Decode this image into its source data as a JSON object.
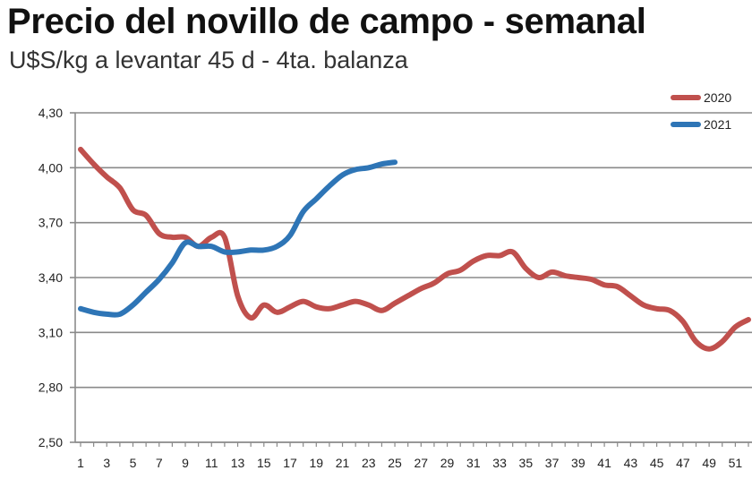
{
  "chart_data": {
    "type": "line",
    "title": "Precio del novillo de campo - semanal",
    "subtitle": "U$S/kg a levantar 45 d - 4ta. balanza",
    "xlabel": "",
    "ylabel": "",
    "ylim": [
      2.5,
      4.3
    ],
    "yticks": [
      "2,50",
      "2,80",
      "3,10",
      "3,40",
      "3,70",
      "4,00",
      "4,30"
    ],
    "xlim": [
      1,
      52
    ],
    "xticks": [
      "1",
      "3",
      "5",
      "7",
      "9",
      "11",
      "13",
      "15",
      "17",
      "19",
      "21",
      "23",
      "25",
      "27",
      "29",
      "31",
      "33",
      "35",
      "37",
      "39",
      "41",
      "43",
      "45",
      "47",
      "49",
      "51"
    ],
    "grid": true,
    "legend_position": "top-right",
    "series": [
      {
        "name": "2020",
        "color": "#c0504d",
        "x": [
          1,
          2,
          3,
          4,
          5,
          6,
          7,
          8,
          9,
          10,
          11,
          12,
          13,
          14,
          15,
          16,
          17,
          18,
          19,
          20,
          21,
          22,
          23,
          24,
          25,
          26,
          27,
          28,
          29,
          30,
          31,
          32,
          33,
          34,
          35,
          36,
          37,
          38,
          39,
          40,
          41,
          42,
          43,
          44,
          45,
          46,
          47,
          48,
          49,
          50,
          51,
          52
        ],
        "values": [
          4.1,
          4.02,
          3.95,
          3.89,
          3.77,
          3.74,
          3.64,
          3.62,
          3.62,
          3.57,
          3.62,
          3.62,
          3.3,
          3.18,
          3.25,
          3.21,
          3.24,
          3.27,
          3.24,
          3.23,
          3.25,
          3.27,
          3.25,
          3.22,
          3.26,
          3.3,
          3.34,
          3.37,
          3.42,
          3.44,
          3.49,
          3.52,
          3.52,
          3.54,
          3.45,
          3.4,
          3.43,
          3.41,
          3.4,
          3.39,
          3.36,
          3.35,
          3.3,
          3.25,
          3.23,
          3.22,
          3.16,
          3.05,
          3.01,
          3.05,
          3.13,
          3.17
        ]
      },
      {
        "name": "2021",
        "color": "#2e75b6",
        "x": [
          1,
          2,
          3,
          4,
          5,
          6,
          7,
          8,
          9,
          10,
          11,
          12,
          13,
          14,
          15,
          16,
          17,
          18,
          19,
          20,
          21,
          22,
          23,
          24,
          25
        ],
        "values": [
          3.23,
          3.21,
          3.2,
          3.2,
          3.25,
          3.32,
          3.39,
          3.48,
          3.59,
          3.57,
          3.57,
          3.54,
          3.54,
          3.55,
          3.55,
          3.57,
          3.63,
          3.76,
          3.83,
          3.9,
          3.96,
          3.99,
          4.0,
          4.02,
          4.03
        ]
      }
    ]
  }
}
